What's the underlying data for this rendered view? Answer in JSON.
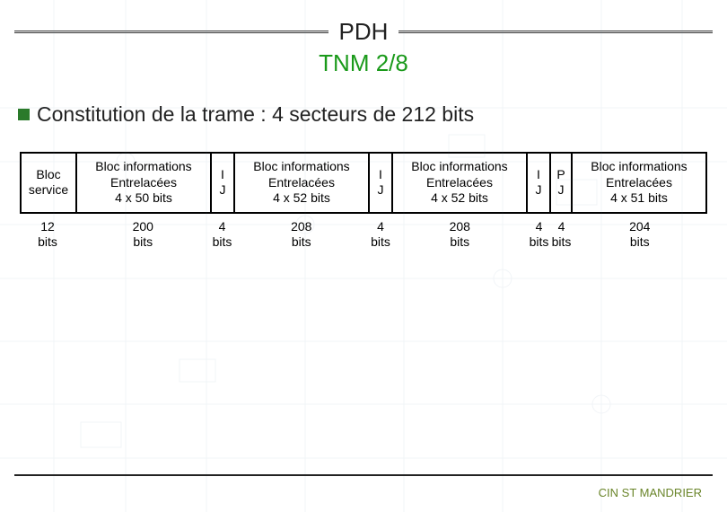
{
  "header": {
    "title": "PDH",
    "subtitle": "TNM 2/8"
  },
  "bullet": "Constitution de la trame : 4 secteurs de 212 bits",
  "frame": {
    "cells": [
      {
        "lines": [
          "Bloc",
          "service"
        ],
        "wclass": "w-svc",
        "bits_value": "12",
        "bits_unit": "bits"
      },
      {
        "lines": [
          "Bloc informations",
          "Entrelacées",
          "4 x 50 bits"
        ],
        "wclass": "w-info",
        "bits_value": "200",
        "bits_unit": "bits"
      },
      {
        "lines": [
          "I",
          "J"
        ],
        "wclass": "w-ij",
        "bits_value": "4",
        "bits_unit": "bits"
      },
      {
        "lines": [
          "Bloc informations",
          "Entrelacées",
          "4 x 52 bits"
        ],
        "wclass": "w-info",
        "bits_value": "208",
        "bits_unit": "bits"
      },
      {
        "lines": [
          "I",
          "J"
        ],
        "wclass": "w-ij",
        "bits_value": "4",
        "bits_unit": "bits"
      },
      {
        "lines": [
          "Bloc informations",
          "Entrelacées",
          "4 x 52 bits"
        ],
        "wclass": "w-info",
        "bits_value": "208",
        "bits_unit": "bits"
      },
      {
        "lines": [
          "I",
          "J"
        ],
        "wclass": "w-ij",
        "bits_value": "4",
        "bits_unit": "bits"
      },
      {
        "lines": [
          "P",
          "J"
        ],
        "wclass": "w-p",
        "bits_value": "4",
        "bits_unit": "bits"
      },
      {
        "lines": [
          "Bloc informations",
          "Entrelacées",
          "4 x 51 bits"
        ],
        "wclass": "w-info",
        "bits_value": "204",
        "bits_unit": "bits"
      }
    ]
  },
  "footer": "CIN ST MANDRIER",
  "colors": {
    "subtitle": "#1a9a1a",
    "bullet": "#2a7a2a",
    "footer": "#6a852a",
    "border": "#000000"
  }
}
